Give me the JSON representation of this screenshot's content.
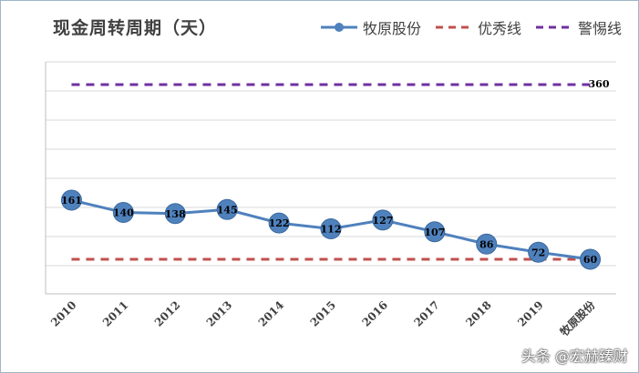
{
  "chart_data": {
    "type": "line",
    "title": "现金周转周期（天）",
    "categories": [
      "2010",
      "2011",
      "2012",
      "2013",
      "2014",
      "2015",
      "2016",
      "2017",
      "2018",
      "2019",
      "牧原股份"
    ],
    "series": [
      {
        "name": "牧原股份",
        "values": [
          161,
          140,
          138,
          145,
          122,
          112,
          127,
          107,
          86,
          72,
          60
        ],
        "color": "#4f81bd"
      }
    ],
    "reference_lines": [
      {
        "name": "优秀线",
        "value": 60,
        "color": "#c0504d",
        "style": "dashed"
      },
      {
        "name": "警惕线",
        "value": 360,
        "color": "#7030a0",
        "style": "dashed",
        "label": "360"
      }
    ],
    "legend": "top-right",
    "grid": true
  },
  "watermark": "头条 @宏赫臻财"
}
